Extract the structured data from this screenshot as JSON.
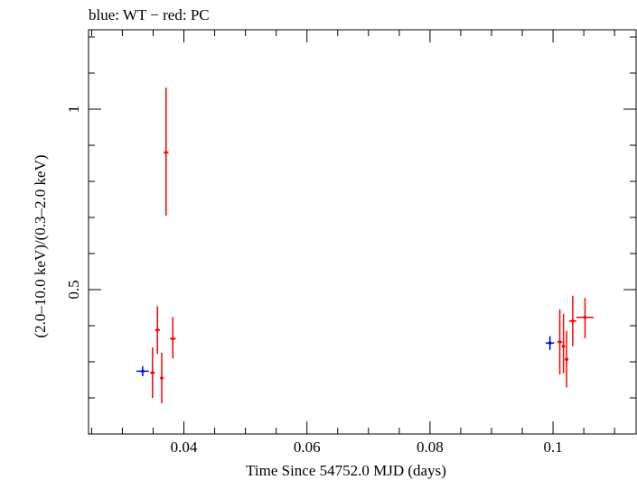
{
  "chart_data": {
    "type": "scatter",
    "title": "blue: WT − red: PC",
    "xlabel": "Time Since 54752.0 MJD (days)",
    "ylabel": "(2.0–10.0 keV)/(0.3–2.0 keV)",
    "xlim": [
      0.0245,
      0.1135
    ],
    "ylim": [
      0.1,
      1.22
    ],
    "x_ticks": [
      {
        "value": 0.04,
        "label": "0.04"
      },
      {
        "value": 0.06,
        "label": "0.06"
      },
      {
        "value": 0.08,
        "label": "0.08"
      },
      {
        "value": 0.1,
        "label": "0.1"
      }
    ],
    "y_ticks": [
      {
        "value": 0.5,
        "label": "0.5"
      },
      {
        "value": 1,
        "label": "1"
      }
    ],
    "x_minor_step": 0.005,
    "y_minor_step": 0.1,
    "series": [
      {
        "color": "#0000ff",
        "points": [
          {
            "x": 0.0333,
            "y": 0.274,
            "xerr": 0.001,
            "yerr_lo": 0.014,
            "yerr_hi": 0.014
          },
          {
            "x": 0.0995,
            "y": 0.352,
            "xerr": 0.0007,
            "yerr_lo": 0.019,
            "yerr_hi": 0.019
          }
        ]
      },
      {
        "color": "#ff0000",
        "points": [
          {
            "x": 0.0349,
            "y": 0.27,
            "xerr": 0.0004,
            "yerr_lo": 0.07,
            "yerr_hi": 0.07
          },
          {
            "x": 0.0357,
            "y": 0.388,
            "xerr": 0.0004,
            "yerr_lo": 0.066,
            "yerr_hi": 0.066
          },
          {
            "x": 0.0364,
            "y": 0.255,
            "xerr": 0.0003,
            "yerr_lo": 0.07,
            "yerr_hi": 0.07
          },
          {
            "x": 0.0371,
            "y": 0.88,
            "xerr": 0.0004,
            "yerr_lo": 0.175,
            "yerr_hi": 0.18
          },
          {
            "x": 0.0382,
            "y": 0.364,
            "xerr": 0.0005,
            "yerr_lo": 0.055,
            "yerr_hi": 0.06
          },
          {
            "x": 0.1011,
            "y": 0.355,
            "xerr": 0.0004,
            "yerr_lo": 0.09,
            "yerr_hi": 0.09
          },
          {
            "x": 0.1017,
            "y": 0.343,
            "xerr": 0.0003,
            "yerr_lo": 0.075,
            "yerr_hi": 0.09
          },
          {
            "x": 0.1022,
            "y": 0.307,
            "xerr": 0.0003,
            "yerr_lo": 0.078,
            "yerr_hi": 0.078
          },
          {
            "x": 0.1032,
            "y": 0.413,
            "xerr": 0.0006,
            "yerr_lo": 0.07,
            "yerr_hi": 0.07
          },
          {
            "x": 0.1052,
            "y": 0.423,
            "xerr": 0.0014,
            "yerr_lo": 0.058,
            "yerr_hi": 0.054
          }
        ]
      }
    ]
  }
}
